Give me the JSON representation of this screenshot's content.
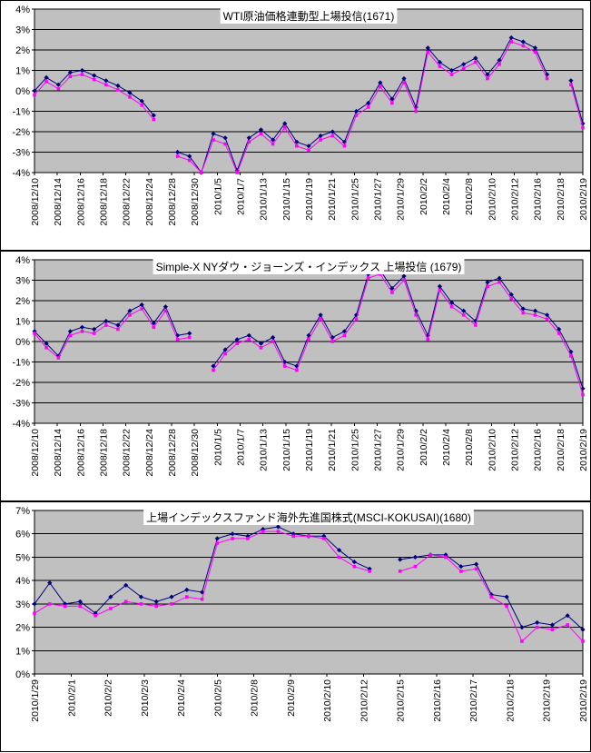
{
  "colors": {
    "plot_bg": "#C0C0C0",
    "grid": "#000000",
    "border": "#000000",
    "series_navy": "#000080",
    "series_magenta": "#FF00FF",
    "chart_bg": "#FFFFFF"
  },
  "chart_data": [
    {
      "type": "line",
      "title": "WTI原油価格連動型上場投信(1671)",
      "xlabel": "",
      "ylabel": "",
      "ylim": [
        -4,
        4
      ],
      "y_tick_step": 1,
      "y_tick_suffix": "%",
      "grid": true,
      "legend": "none",
      "x_tick_labels": [
        "2008/12/10",
        "2008/12/14",
        "2008/12/16",
        "2008/12/18",
        "2008/12/22",
        "2008/12/24",
        "2008/12/28",
        "2008/12/30",
        "2010/1/5",
        "2010/1/7",
        "2010/1/13",
        "2010/1/15",
        "2010/1/19",
        "2010/1/21",
        "2010/1/25",
        "2010/1/27",
        "2010/1/29",
        "2010/2/2",
        "2010/2/4",
        "2010/2/8",
        "2010/2/10",
        "2010/2/12",
        "2010/2/16",
        "2010/2/18",
        "2010/2/19"
      ],
      "series": [
        {
          "name": "series-1",
          "color": "#000080",
          "marker": "diamond",
          "values": [
            0.0,
            0.65,
            0.3,
            0.9,
            1.0,
            0.75,
            0.5,
            0.25,
            -0.1,
            -0.5,
            -1.2,
            null,
            -3.0,
            -3.2,
            -4.0,
            -2.1,
            -2.3,
            -3.9,
            -2.3,
            -1.9,
            -2.4,
            -1.6,
            -2.5,
            -2.7,
            -2.2,
            -2.0,
            -2.5,
            -1.0,
            -0.6,
            0.4,
            -0.4,
            0.6,
            -0.8,
            2.1,
            1.4,
            1.0,
            1.3,
            1.6,
            0.8,
            1.5,
            2.6,
            2.4,
            2.1,
            0.8,
            null,
            0.5,
            -1.6
          ]
        },
        {
          "name": "series-2",
          "color": "#FF00FF",
          "marker": "square",
          "values": [
            -0.2,
            0.45,
            0.1,
            0.7,
            0.8,
            0.55,
            0.3,
            0.05,
            -0.3,
            -0.7,
            -1.4,
            null,
            -3.2,
            -3.4,
            -4.0,
            -2.4,
            -2.6,
            -4.0,
            -2.5,
            -2.1,
            -2.6,
            -1.8,
            -2.7,
            -2.9,
            -2.4,
            -2.2,
            -2.7,
            -1.2,
            -0.8,
            0.2,
            -0.6,
            0.4,
            -1.0,
            1.9,
            1.2,
            0.8,
            1.1,
            1.4,
            0.6,
            1.3,
            2.4,
            2.2,
            1.9,
            0.6,
            null,
            0.3,
            -1.8
          ]
        }
      ]
    },
    {
      "type": "line",
      "title": "Simple-X NYダウ・ジョーンズ・インデックス 上場投信 (1679)",
      "xlabel": "",
      "ylabel": "",
      "ylim": [
        -4,
        4
      ],
      "y_tick_step": 1,
      "y_tick_suffix": "%",
      "grid": true,
      "legend": "none",
      "x_tick_labels": [
        "2008/12/10",
        "2008/12/14",
        "2008/12/16",
        "2008/12/18",
        "2008/12/22",
        "2008/12/24",
        "2008/12/28",
        "2008/12/30",
        "2010/1/5",
        "2010/1/7",
        "2010/1/13",
        "2010/1/15",
        "2010/1/19",
        "2010/1/21",
        "2010/1/25",
        "2010/1/27",
        "2010/1/29",
        "2010/2/2",
        "2010/2/4",
        "2010/2/8",
        "2010/2/10",
        "2010/2/12",
        "2010/2/16",
        "2010/2/18",
        "2010/2/19"
      ],
      "series": [
        {
          "name": "series-1",
          "color": "#000080",
          "marker": "diamond",
          "values": [
            0.5,
            -0.1,
            -0.7,
            0.5,
            0.7,
            0.6,
            1.0,
            0.8,
            1.5,
            1.8,
            0.9,
            1.7,
            0.3,
            0.4,
            null,
            -1.2,
            -0.4,
            0.1,
            0.3,
            -0.1,
            0.2,
            -1.0,
            -1.2,
            0.3,
            1.3,
            0.2,
            0.5,
            1.3,
            3.3,
            3.5,
            2.6,
            3.2,
            1.5,
            0.3,
            2.7,
            1.9,
            1.5,
            1.0,
            2.9,
            3.1,
            2.3,
            1.6,
            1.5,
            1.3,
            0.6,
            -0.5,
            -2.3
          ]
        },
        {
          "name": "series-2",
          "color": "#FF00FF",
          "marker": "square",
          "values": [
            0.4,
            -0.3,
            -0.8,
            0.3,
            0.5,
            0.4,
            0.8,
            0.6,
            1.3,
            1.6,
            0.7,
            1.5,
            0.1,
            0.2,
            null,
            -1.4,
            -0.6,
            -0.1,
            0.1,
            -0.3,
            0.0,
            -1.2,
            -1.4,
            0.1,
            1.1,
            0.0,
            0.3,
            1.1,
            3.1,
            3.3,
            2.4,
            3.0,
            1.3,
            0.1,
            2.5,
            1.7,
            1.3,
            0.8,
            2.7,
            2.9,
            2.1,
            1.4,
            1.3,
            1.1,
            0.4,
            -0.7,
            -2.6
          ]
        }
      ]
    },
    {
      "type": "line",
      "title": "上場インデックスファンド海外先進国株式(MSCI-KOKUSAI)(1680)",
      "xlabel": "",
      "ylabel": "",
      "ylim": [
        0,
        7
      ],
      "y_tick_step": 1,
      "y_tick_suffix": "%",
      "grid": true,
      "legend": "none",
      "x_tick_labels": [
        "2010/1/29",
        "2010/2/1",
        "2010/2/2",
        "2010/2/3",
        "2010/2/4",
        "2010/2/5",
        "2010/2/8",
        "2010/2/9",
        "2010/2/10",
        "2010/2/12",
        "2010/2/15",
        "2010/2/16",
        "2010/2/17",
        "2010/2/18",
        "2010/2/19",
        "2010/2/19"
      ],
      "series": [
        {
          "name": "series-1",
          "color": "#000080",
          "marker": "diamond",
          "values": [
            3.0,
            3.9,
            3.0,
            3.1,
            2.6,
            3.3,
            3.8,
            3.3,
            3.1,
            3.3,
            3.6,
            3.5,
            5.8,
            6.0,
            5.9,
            6.2,
            6.3,
            6.0,
            5.9,
            5.9,
            5.3,
            4.8,
            4.5,
            null,
            4.9,
            5.0,
            5.1,
            5.1,
            4.6,
            4.7,
            3.4,
            3.3,
            2.0,
            2.2,
            2.1,
            2.5,
            1.9
          ]
        },
        {
          "name": "series-2",
          "color": "#FF00FF",
          "marker": "square",
          "values": [
            2.6,
            3.0,
            2.9,
            2.9,
            2.5,
            2.8,
            3.1,
            3.0,
            2.9,
            3.0,
            3.3,
            3.2,
            5.6,
            5.8,
            5.8,
            6.1,
            6.1,
            5.9,
            5.9,
            5.8,
            5.0,
            4.6,
            4.4,
            null,
            4.4,
            4.6,
            5.1,
            5.0,
            4.4,
            4.5,
            3.3,
            2.9,
            1.4,
            2.0,
            1.9,
            2.1,
            1.4
          ]
        }
      ]
    }
  ]
}
